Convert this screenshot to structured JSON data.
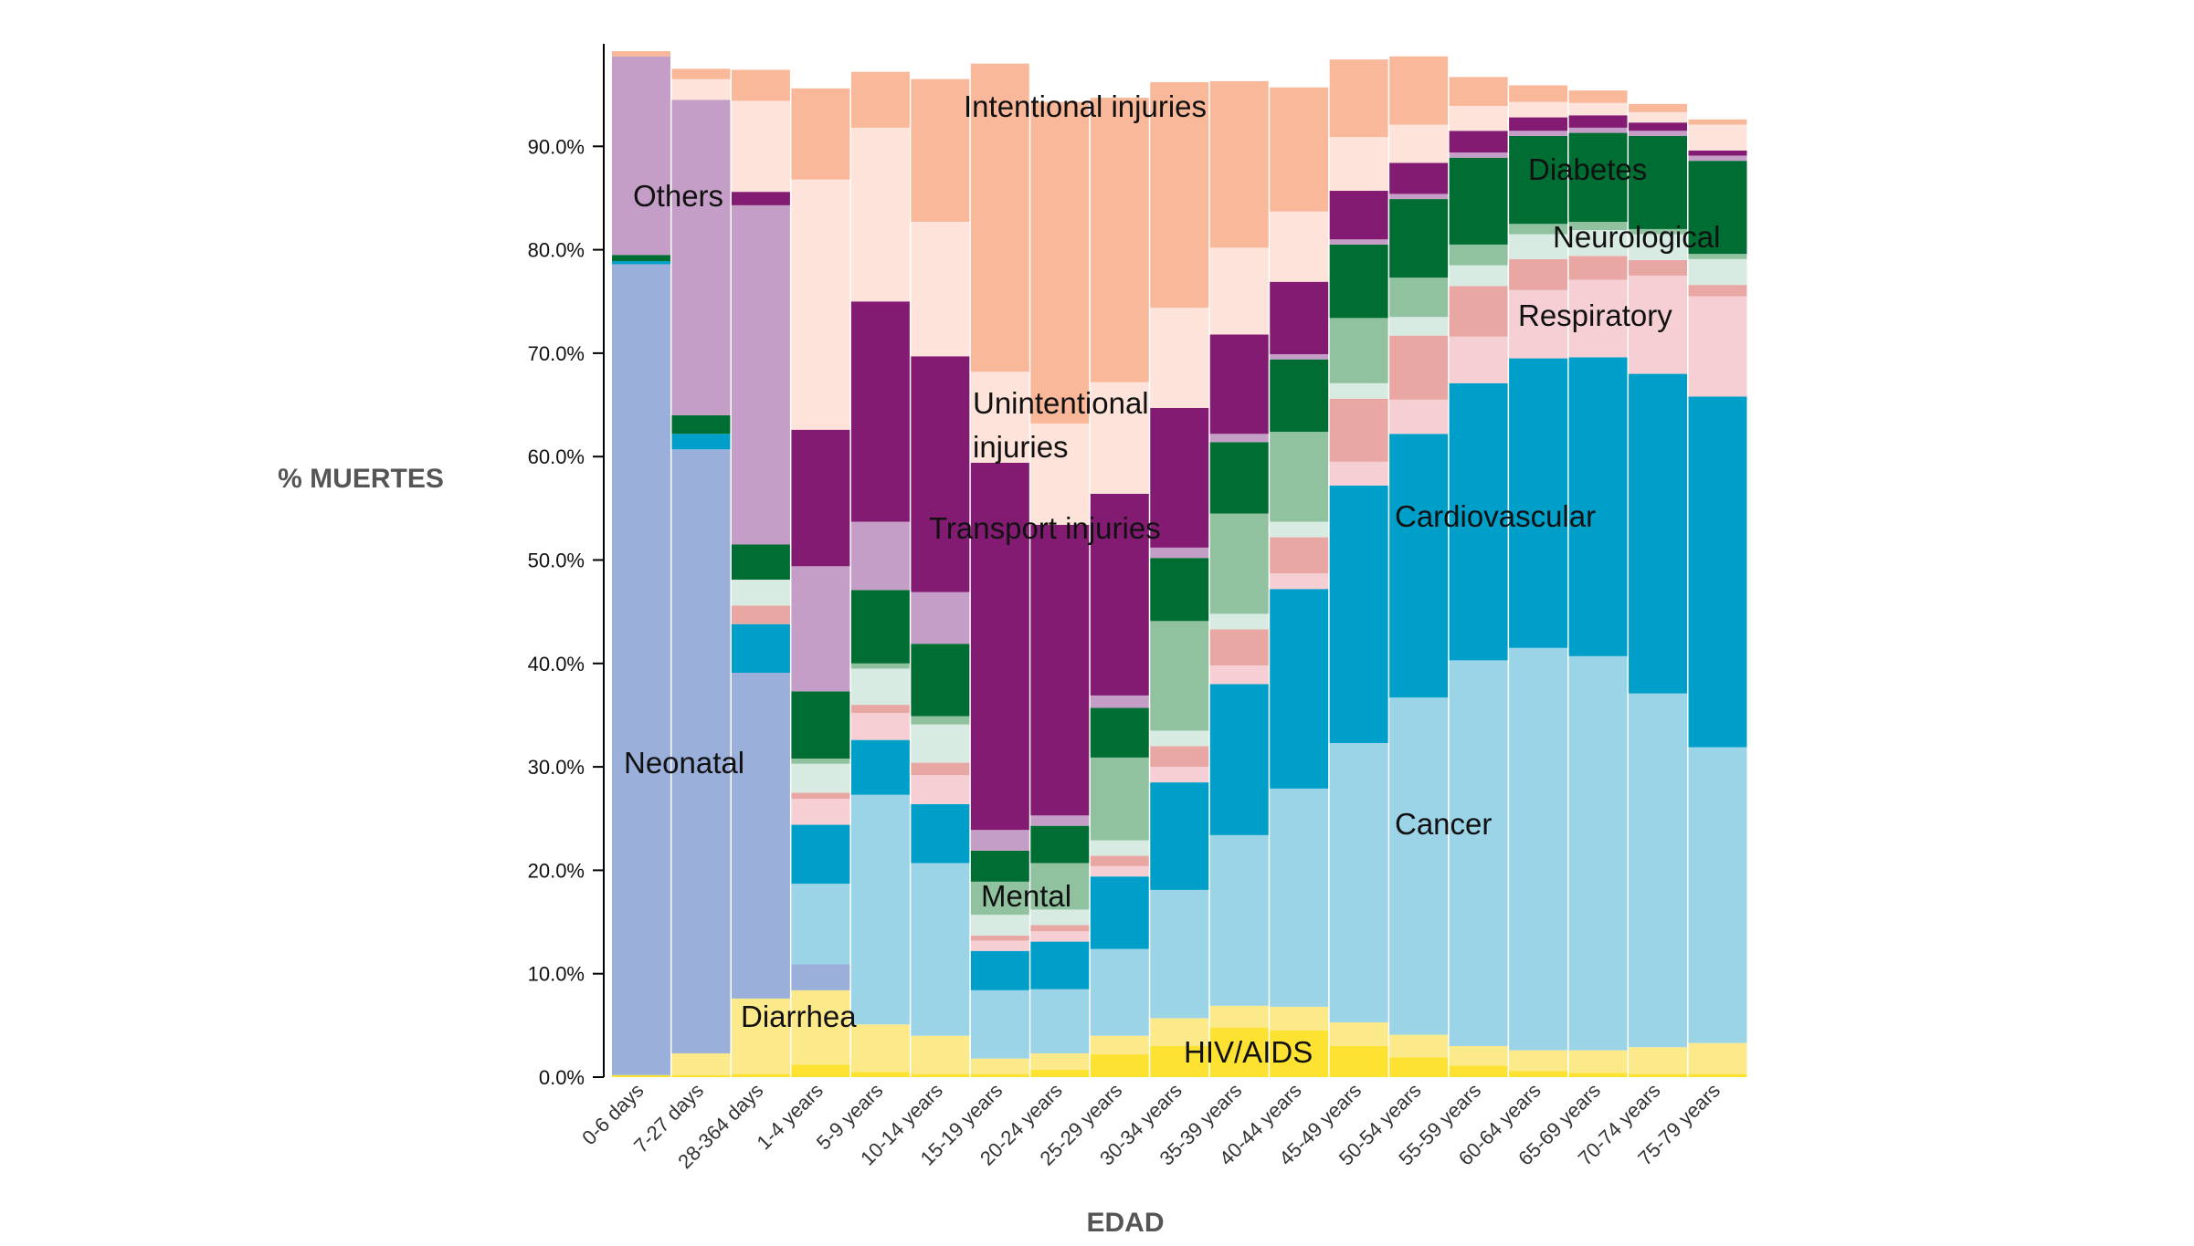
{
  "chart_data": {
    "type": "area",
    "ylabel": "% MUERTES",
    "xlabel": "EDAD",
    "ylim": [
      0,
      100
    ],
    "y_ticks": [
      "0.0%",
      "10.0%",
      "20.0%",
      "30.0%",
      "40.0%",
      "50.0%",
      "60.0%",
      "70.0%",
      "80.0%",
      "90.0%"
    ],
    "y_tick_values": [
      0,
      10,
      20,
      30,
      40,
      50,
      60,
      70,
      80,
      90
    ],
    "categories": [
      "0-6 days",
      "7-27 days",
      "28-364 days",
      "1-4 years",
      "5-9 years",
      "10-14 years",
      "15-19 years",
      "20-24 years",
      "25-29 years",
      "30-34 years",
      "35-39 years",
      "40-44 years",
      "45-49 years",
      "50-54 years",
      "55-59 years",
      "60-64 years",
      "65-69 years",
      "70-74 years",
      "75-79 years"
    ],
    "series": [
      {
        "key": "hiv",
        "color": "#fde232",
        "values": [
          0.2,
          0.2,
          0.3,
          1.2,
          0.5,
          0.3,
          0.3,
          0.7,
          2.2,
          3.0,
          4.8,
          4.5,
          3.0,
          1.9,
          1.1,
          0.6,
          0.4,
          0.3,
          0.3
        ]
      },
      {
        "key": "diarrhea",
        "color": "#fce98a",
        "values": [
          0,
          2.1,
          7.3,
          7.2,
          4.6,
          3.7,
          1.5,
          1.6,
          1.8,
          2.7,
          2.1,
          2.3,
          2.3,
          2.2,
          1.9,
          2.0,
          2.2,
          2.6,
          3.0
        ]
      },
      {
        "key": "neonatal",
        "color": "#9aafda",
        "values": [
          78.4,
          58.4,
          31.5,
          2.5,
          0,
          0,
          0,
          0,
          0,
          0,
          0,
          0,
          0,
          0,
          0,
          0,
          0,
          0,
          0
        ]
      },
      {
        "key": "cancer",
        "color": "#9bd4e6",
        "values": [
          0,
          0,
          0,
          7.8,
          22.2,
          16.7,
          6.6,
          6.2,
          8.4,
          12.4,
          16.5,
          21.1,
          27.0,
          32.6,
          37.3,
          38.9,
          38.1,
          34.2,
          28.6
        ]
      },
      {
        "key": "cardiovascular",
        "color": "#009fca",
        "values": [
          0.3,
          1.5,
          4.7,
          5.7,
          5.3,
          5.7,
          3.8,
          4.6,
          7.0,
          10.4,
          14.6,
          19.3,
          24.9,
          25.5,
          26.8,
          28.0,
          28.9,
          30.9,
          33.9
        ]
      },
      {
        "key": "diabetes_kidney",
        "color": "#f5cfd4",
        "values": [
          0,
          0,
          0,
          2.5,
          2.6,
          2.8,
          1.0,
          1.0,
          1.0,
          1.5,
          1.8,
          1.5,
          2.3,
          3.3,
          4.5,
          6.6,
          7.5,
          9.5,
          9.7
        ]
      },
      {
        "key": "respiratory",
        "color": "#e8a7a2",
        "values": [
          0,
          0,
          1.8,
          0.6,
          0.8,
          1.2,
          0.5,
          0.6,
          1.0,
          2.0,
          3.5,
          3.5,
          6.1,
          6.2,
          4.9,
          3.0,
          2.3,
          1.5,
          1.1
        ]
      },
      {
        "key": "neurological",
        "color": "#d8ebe2",
        "values": [
          0,
          0,
          2.5,
          2.8,
          3.5,
          3.7,
          2.0,
          1.5,
          1.5,
          1.5,
          1.5,
          1.5,
          1.5,
          1.8,
          2.0,
          2.4,
          2.5,
          2.5,
          2.5
        ]
      },
      {
        "key": "mental",
        "color": "#90c2a0",
        "values": [
          0,
          0,
          0,
          0.5,
          0.5,
          0.8,
          3.2,
          4.5,
          8.0,
          10.6,
          9.7,
          8.7,
          6.3,
          3.8,
          2.0,
          1.0,
          0.8,
          0.5,
          0.5
        ]
      },
      {
        "key": "diabetes",
        "color": "#006e33",
        "values": [
          0.6,
          1.8,
          3.4,
          6.5,
          7.1,
          7.0,
          3.0,
          3.6,
          4.8,
          6.1,
          6.9,
          7.0,
          7.1,
          7.6,
          8.4,
          8.5,
          8.6,
          9.0,
          9.0
        ]
      },
      {
        "key": "others",
        "color": "#c59ec8",
        "values": [
          19.2,
          30.5,
          32.8,
          12.1,
          6.6,
          5.0,
          2.0,
          1.0,
          1.2,
          1.0,
          0.8,
          0.5,
          0.5,
          0.5,
          0.5,
          0.5,
          0.5,
          0.5,
          0.5
        ]
      },
      {
        "key": "transport",
        "color": "#841b73",
        "values": [
          0,
          0,
          1.3,
          13.2,
          21.3,
          22.8,
          35.5,
          28.1,
          19.5,
          13.5,
          9.6,
          7.0,
          4.7,
          3.0,
          2.1,
          1.3,
          1.2,
          0.8,
          0.5
        ]
      },
      {
        "key": "unintentional",
        "color": "#fde3d9",
        "values": [
          0,
          2.0,
          8.8,
          24.2,
          16.8,
          13.0,
          8.8,
          9.8,
          10.8,
          9.7,
          8.4,
          6.8,
          5.2,
          3.7,
          2.4,
          1.5,
          1.2,
          1.0,
          2.5
        ]
      },
      {
        "key": "intentional",
        "color": "#f8b899",
        "values": [
          0.5,
          1.0,
          3.0,
          8.8,
          5.4,
          13.8,
          29.8,
          31.1,
          27.5,
          21.8,
          16.1,
          12.0,
          7.5,
          6.6,
          2.8,
          1.6,
          1.2,
          0.8,
          0.5
        ]
      }
    ],
    "annotations": [
      {
        "text": "Intentional injuries",
        "key": "ann_intentional"
      },
      {
        "text": "Others",
        "key": "ann_others"
      },
      {
        "text": "Unintentional",
        "key": "ann_unintentional_1"
      },
      {
        "text": "injuries",
        "key": "ann_unintentional_2"
      },
      {
        "text": "Transport injuries",
        "key": "ann_transport"
      },
      {
        "text": "Neonatal",
        "key": "ann_neonatal"
      },
      {
        "text": "Mental",
        "key": "ann_mental"
      },
      {
        "text": "Diarrhea",
        "key": "ann_diarrhea"
      },
      {
        "text": "HIV/AIDS",
        "key": "ann_hiv"
      },
      {
        "text": "Diabetes",
        "key": "ann_diabetes"
      },
      {
        "text": "Neurological",
        "key": "ann_neurological"
      },
      {
        "text": "Respiratory",
        "key": "ann_respiratory"
      },
      {
        "text": "Cardiovascular",
        "key": "ann_cardiovascular"
      },
      {
        "text": "Cancer",
        "key": "ann_cancer"
      }
    ],
    "grid": false,
    "legend": "none"
  }
}
